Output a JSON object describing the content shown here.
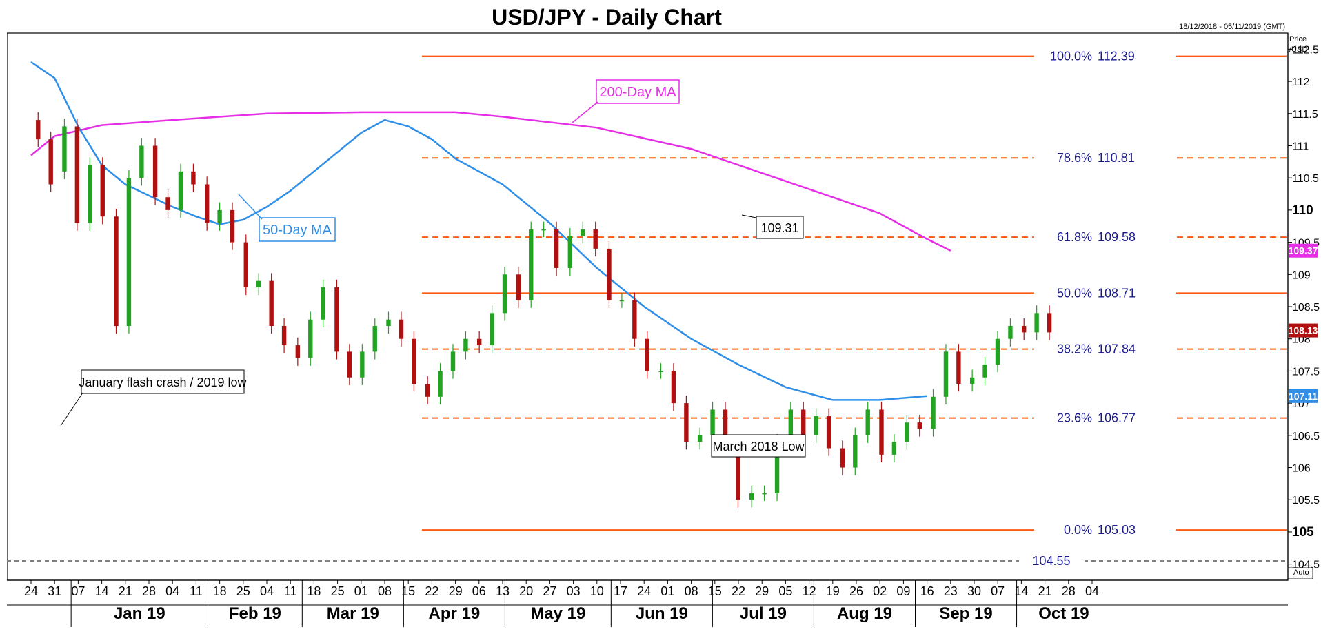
{
  "title": "USD/JPY - Daily Chart",
  "date_range": "18/12/2018 - 05/11/2019 (GMT)",
  "price_axis_label": [
    "Price",
    "/USD"
  ],
  "auto_label": "Auto",
  "colors": {
    "bull": "#22a322",
    "bear": "#b01010",
    "ma50": "#2f8fe8",
    "ma200": "#e62ee6",
    "fib": "#ff5a14",
    "support": "#808080"
  },
  "chart_data": {
    "type": "candlestick",
    "title": "USD/JPY - Daily Chart",
    "ylim": [
      104.25,
      112.75
    ],
    "y_ticks": [
      104.5,
      105,
      105.5,
      106,
      106.5,
      107,
      107.5,
      108,
      108.5,
      109,
      109.5,
      110,
      110.5,
      111,
      111.5,
      112,
      112.5
    ],
    "y_tick_labels": [
      "104.5",
      "105",
      "105.5",
      "106",
      "106.5",
      "107",
      "107.5",
      "108",
      "108.5",
      "109",
      "109.5",
      "110",
      "110.5",
      "111",
      "111.5",
      "112",
      "112.5"
    ],
    "y_bold_ticks": [
      "105",
      "110"
    ],
    "x_ticks": [
      "24",
      "31",
      "07",
      "14",
      "21",
      "28",
      "04",
      "11",
      "18",
      "25",
      "04",
      "11",
      "18",
      "25",
      "01",
      "08",
      "15",
      "22",
      "29",
      "06",
      "13",
      "20",
      "27",
      "03",
      "10",
      "17",
      "24",
      "01",
      "08",
      "15",
      "22",
      "29",
      "05",
      "12",
      "19",
      "26",
      "02",
      "09",
      "16",
      "23",
      "30",
      "07",
      "14",
      "21",
      "28",
      "04"
    ],
    "x_months": [
      {
        "label": "Jan 19",
        "start": 1.7,
        "end": 7.5
      },
      {
        "label": "Feb 19",
        "start": 7.5,
        "end": 11.5
      },
      {
        "label": "Mar 19",
        "start": 11.5,
        "end": 15.8
      },
      {
        "label": "Apr 19",
        "start": 15.8,
        "end": 20.1
      },
      {
        "label": "May 19",
        "start": 20.1,
        "end": 24.6
      },
      {
        "label": "Jun 19",
        "start": 24.6,
        "end": 28.9
      },
      {
        "label": "Jul 19",
        "start": 28.9,
        "end": 33.2
      },
      {
        "label": "Aug 19",
        "start": 33.2,
        "end": 37.5
      },
      {
        "label": "Sep 19",
        "start": 37.5,
        "end": 41.8
      },
      {
        "label": "Oct 19",
        "start": 41.8,
        "end": 45.8
      }
    ],
    "series": [
      {
        "name": "Daily",
        "points": [
          [
            -1.0,
            111.4,
            111.1
          ],
          [
            -0.86,
            111.1,
            110.4
          ],
          [
            -0.71,
            110.6,
            111.3
          ],
          [
            -0.57,
            111.3,
            109.8
          ],
          [
            -0.43,
            109.8,
            110.7
          ],
          [
            -0.29,
            110.7,
            109.9
          ],
          [
            -0.14,
            109.9,
            108.2
          ],
          [
            0.0,
            108.2,
            110.5
          ],
          [
            0.14,
            110.5,
            111.0
          ],
          [
            0.29,
            111.0,
            110.2
          ],
          [
            0.43,
            110.2,
            110.0
          ],
          [
            0.57,
            110.0,
            110.6
          ],
          [
            0.71,
            110.6,
            110.4
          ],
          [
            0.86,
            110.4,
            109.8
          ],
          [
            1.0,
            109.8,
            110.0
          ],
          [
            1.14,
            110.0,
            109.5
          ],
          [
            1.29,
            109.5,
            108.8
          ],
          [
            1.43,
            108.8,
            108.9
          ],
          [
            1.57,
            108.9,
            108.2
          ],
          [
            1.71,
            108.2,
            107.9
          ],
          [
            1.86,
            107.9,
            107.7
          ],
          [
            2.0,
            107.7,
            108.3
          ],
          [
            2.14,
            108.3,
            108.8
          ],
          [
            2.29,
            108.8,
            107.8
          ],
          [
            2.43,
            107.8,
            107.4
          ],
          [
            2.57,
            107.4,
            107.8
          ],
          [
            2.71,
            107.8,
            108.2
          ],
          [
            2.86,
            108.2,
            108.3
          ],
          [
            3.0,
            108.3,
            108.0
          ],
          [
            3.14,
            108.0,
            107.3
          ],
          [
            3.29,
            107.3,
            107.1
          ],
          [
            3.43,
            107.1,
            107.5
          ],
          [
            3.57,
            107.5,
            107.8
          ],
          [
            3.71,
            107.8,
            108.0
          ],
          [
            3.86,
            108.0,
            107.9
          ],
          [
            4.0,
            107.9,
            108.4
          ],
          [
            4.14,
            108.4,
            109.0
          ],
          [
            4.29,
            109.0,
            108.6
          ],
          [
            4.43,
            108.6,
            109.7
          ],
          [
            4.57,
            109.7,
            109.7
          ],
          [
            4.71,
            109.7,
            109.1
          ],
          [
            4.86,
            109.1,
            109.6
          ],
          [
            5.0,
            109.6,
            109.7
          ],
          [
            5.14,
            109.7,
            109.4
          ],
          [
            5.29,
            109.4,
            108.6
          ],
          [
            5.43,
            108.6,
            108.6
          ],
          [
            5.57,
            108.6,
            108.0
          ],
          [
            5.71,
            108.0,
            107.5
          ],
          [
            5.86,
            107.5,
            107.5
          ],
          [
            6.0,
            107.5,
            107.0
          ],
          [
            6.14,
            107.0,
            106.4
          ],
          [
            6.29,
            106.4,
            106.5
          ],
          [
            6.43,
            106.5,
            106.9
          ],
          [
            6.57,
            106.9,
            106.3
          ],
          [
            6.71,
            106.3,
            105.5
          ],
          [
            6.86,
            105.5,
            105.6
          ],
          [
            7.0,
            105.6,
            105.6
          ],
          [
            7.14,
            105.6,
            106.4
          ],
          [
            7.29,
            106.4,
            106.9
          ],
          [
            7.43,
            106.9,
            106.5
          ],
          [
            7.57,
            106.5,
            106.8
          ],
          [
            7.71,
            106.8,
            106.3
          ],
          [
            7.86,
            106.3,
            106.0
          ],
          [
            8.0,
            106.0,
            106.5
          ],
          [
            8.14,
            106.5,
            106.9
          ],
          [
            8.29,
            106.9,
            106.2
          ],
          [
            8.43,
            106.2,
            106.4
          ],
          [
            8.57,
            106.4,
            106.7
          ],
          [
            8.71,
            106.7,
            106.6
          ],
          [
            8.86,
            106.6,
            107.1
          ],
          [
            9.0,
            107.1,
            107.8
          ],
          [
            9.14,
            107.8,
            107.3
          ],
          [
            9.29,
            107.3,
            107.4
          ],
          [
            9.43,
            107.4,
            107.6
          ],
          [
            9.57,
            107.6,
            108.0
          ],
          [
            9.71,
            108.0,
            108.2
          ],
          [
            9.86,
            108.2,
            108.1
          ],
          [
            10.0,
            108.1,
            108.4
          ],
          [
            10.14,
            108.4,
            108.1
          ]
        ]
      }
    ]
  },
  "indicators": {
    "ma50": {
      "label": "50-Day MA",
      "value_label": "107.11"
    },
    "ma200": {
      "label": "200-Day MA",
      "value_label": "109.37"
    },
    "last_price_label": "108.13"
  },
  "fibonacci": [
    {
      "level": "100.0%",
      "value": "112.39",
      "price": 112.39,
      "style": "solid"
    },
    {
      "level": "78.6%",
      "value": "110.81",
      "price": 110.81,
      "style": "dashed"
    },
    {
      "level": "61.8%",
      "value": "109.58",
      "price": 109.58,
      "style": "dashed"
    },
    {
      "level": "50.0%",
      "value": "108.71",
      "price": 108.71,
      "style": "solid"
    },
    {
      "level": "38.2%",
      "value": "107.84",
      "price": 107.84,
      "style": "dashed"
    },
    {
      "level": "23.6%",
      "value": "106.77",
      "price": 106.77,
      "style": "dashed"
    },
    {
      "level": "0.0%",
      "value": "105.03",
      "price": 105.03,
      "style": "solid"
    }
  ],
  "support_line": {
    "value": "104.55",
    "price": 104.55
  },
  "annotations": {
    "flash_crash": "January flash crash / 2019 low",
    "march_low": "March 2018 Low",
    "high_label": "109.31"
  }
}
